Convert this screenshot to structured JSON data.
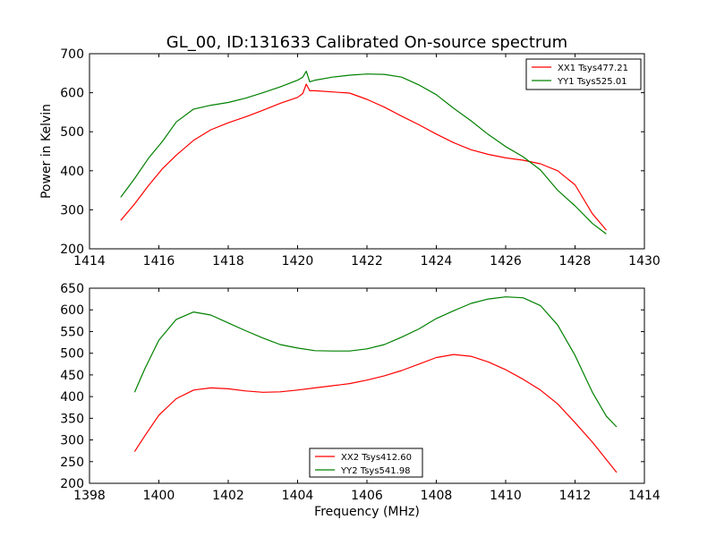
{
  "figure_title": "GL_00, ID:131633 Calibrated On-source spectrum",
  "ylabel": "Power in Kelvin",
  "xlabel": "Frequency (MHz)",
  "colors": {
    "red": "#ff0000",
    "green": "#008000"
  },
  "chart_data": [
    {
      "type": "line",
      "xlim": [
        1414,
        1430
      ],
      "ylim": [
        200,
        700
      ],
      "xticks": [
        1414,
        1416,
        1418,
        1420,
        1422,
        1424,
        1426,
        1428,
        1430
      ],
      "yticks": [
        200,
        300,
        400,
        500,
        600,
        700
      ],
      "grid": false,
      "legend_position": "top-right",
      "series": [
        {
          "name": "XX1 Tsys477.21",
          "color": "#ff0000",
          "x": [
            1414.9,
            1415.3,
            1415.7,
            1416.1,
            1416.5,
            1417.0,
            1417.5,
            1418.0,
            1418.5,
            1419.0,
            1419.5,
            1420.0,
            1420.15,
            1420.25,
            1420.35,
            1420.5,
            1421.0,
            1421.5,
            1422.0,
            1422.5,
            1423.0,
            1423.5,
            1424.0,
            1424.5,
            1425.0,
            1425.5,
            1426.0,
            1426.5,
            1427.0,
            1427.5,
            1428.0,
            1428.5,
            1428.9
          ],
          "y": [
            273,
            315,
            362,
            405,
            440,
            478,
            505,
            523,
            538,
            555,
            573,
            588,
            598,
            622,
            605,
            605,
            602,
            599,
            583,
            563,
            540,
            518,
            494,
            472,
            454,
            442,
            433,
            427,
            418,
            400,
            364,
            290,
            248
          ]
        },
        {
          "name": "YY1 Tsys525.01",
          "color": "#008000",
          "x": [
            1414.9,
            1415.3,
            1415.7,
            1416.1,
            1416.5,
            1417.0,
            1417.5,
            1418.0,
            1418.5,
            1419.0,
            1419.5,
            1420.0,
            1420.15,
            1420.25,
            1420.35,
            1420.5,
            1421.0,
            1421.5,
            1422.0,
            1422.5,
            1423.0,
            1423.5,
            1424.0,
            1424.5,
            1425.0,
            1425.5,
            1426.0,
            1426.5,
            1427.0,
            1427.5,
            1428.0,
            1428.5,
            1428.9
          ],
          "y": [
            332,
            380,
            432,
            475,
            525,
            558,
            568,
            575,
            586,
            600,
            615,
            632,
            640,
            655,
            628,
            632,
            640,
            645,
            648,
            647,
            640,
            620,
            595,
            560,
            528,
            493,
            462,
            436,
            402,
            350,
            310,
            265,
            238
          ]
        }
      ]
    },
    {
      "type": "line",
      "xlim": [
        1398,
        1414
      ],
      "ylim": [
        200,
        650
      ],
      "xticks": [
        1398,
        1400,
        1402,
        1404,
        1406,
        1408,
        1410,
        1412,
        1414
      ],
      "yticks": [
        200,
        250,
        300,
        350,
        400,
        450,
        500,
        550,
        600,
        650
      ],
      "grid": false,
      "legend_position": "bottom-center",
      "series": [
        {
          "name": "XX2 Tsys412.60",
          "color": "#ff0000",
          "x": [
            1399.3,
            1399.6,
            1400.0,
            1400.5,
            1401.0,
            1401.5,
            1402.0,
            1402.5,
            1403.0,
            1403.5,
            1404.0,
            1404.5,
            1405.0,
            1405.5,
            1406.0,
            1406.5,
            1407.0,
            1407.5,
            1408.0,
            1408.5,
            1409.0,
            1409.5,
            1410.0,
            1410.5,
            1411.0,
            1411.5,
            1412.0,
            1412.5,
            1412.9,
            1413.2
          ],
          "y": [
            273,
            310,
            357,
            395,
            415,
            420,
            418,
            413,
            410,
            411,
            415,
            420,
            425,
            430,
            438,
            448,
            460,
            475,
            490,
            497,
            493,
            480,
            462,
            440,
            415,
            383,
            340,
            295,
            255,
            225
          ]
        },
        {
          "name": "YY2 Tsys541.98",
          "color": "#008000",
          "x": [
            1399.3,
            1399.6,
            1400.0,
            1400.5,
            1401.0,
            1401.5,
            1402.0,
            1402.5,
            1403.0,
            1403.5,
            1404.0,
            1404.5,
            1405.0,
            1405.5,
            1406.0,
            1406.5,
            1407.0,
            1407.5,
            1408.0,
            1408.5,
            1409.0,
            1409.5,
            1410.0,
            1410.5,
            1411.0,
            1411.5,
            1412.0,
            1412.5,
            1412.9,
            1413.2
          ],
          "y": [
            410,
            465,
            530,
            578,
            595,
            588,
            570,
            552,
            535,
            520,
            512,
            506,
            505,
            505,
            510,
            520,
            537,
            556,
            580,
            598,
            615,
            625,
            630,
            628,
            610,
            565,
            495,
            410,
            355,
            330
          ]
        }
      ]
    }
  ]
}
